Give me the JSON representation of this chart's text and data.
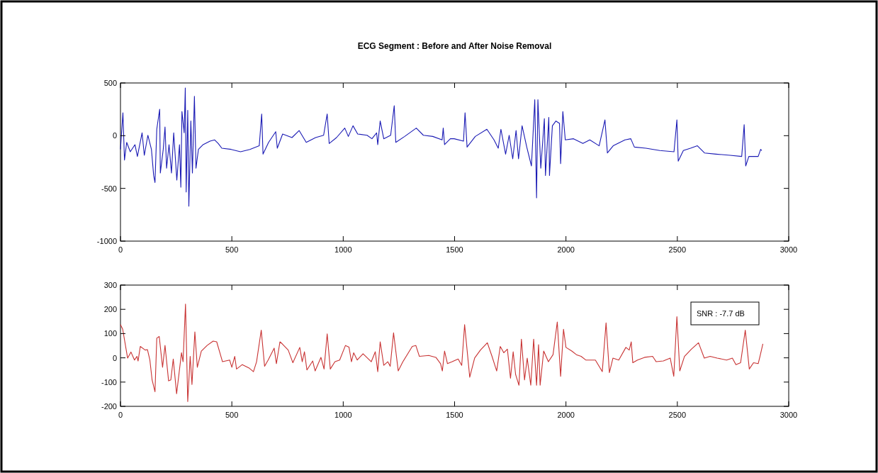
{
  "chart_data": [
    {
      "type": "line",
      "title": "ECG Segment : Before and After Noise Removal",
      "xlim": [
        0,
        3000
      ],
      "xticks": [
        0,
        500,
        1000,
        1500,
        2000,
        2500,
        3000
      ],
      "ylim": [
        -1000,
        500
      ],
      "yticks": [
        -1000,
        -500,
        0,
        500
      ],
      "grid": false,
      "marker": "none",
      "line_style": "solid",
      "series": [
        {
          "color": "#1a1ab4",
          "x": [
            0,
            11,
            18,
            28,
            44,
            65,
            76,
            97,
            107,
            123,
            139,
            149,
            155,
            163,
            176,
            179,
            192,
            200,
            207,
            218,
            229,
            239,
            253,
            265,
            271,
            276,
            286,
            291,
            295,
            302,
            307,
            316,
            323,
            332,
            339,
            350,
            371,
            402,
            423,
            439,
            455,
            497,
            539,
            581,
            623,
            634,
            640,
            665,
            697,
            704,
            728,
            770,
            802,
            834,
            876,
            912,
            928,
            937,
            970,
            1007,
            1023,
            1044,
            1065,
            1107,
            1129,
            1150,
            1155,
            1166,
            1182,
            1213,
            1229,
            1236,
            1276,
            1328,
            1360,
            1402,
            1444,
            1449,
            1455,
            1481,
            1498,
            1540,
            1547,
            1556,
            1593,
            1645,
            1677,
            1696,
            1708,
            1729,
            1745,
            1761,
            1776,
            1787,
            1803,
            1824,
            1845,
            1860,
            1868,
            1874,
            1887,
            1903,
            1908,
            1923,
            1926,
            1939,
            1955,
            1971,
            1976,
            1986,
            1997,
            2034,
            2076,
            2107,
            2149,
            2175,
            2186,
            2212,
            2265,
            2291,
            2307,
            2359,
            2421,
            2485,
            2498,
            2504,
            2527,
            2559,
            2590,
            2622,
            2674,
            2737,
            2789,
            2800,
            2807,
            2821,
            2863,
            2874,
            2879
          ],
          "values": [
            -130,
            217,
            -231,
            -63,
            -152,
            -85,
            -197,
            27,
            -186,
            4,
            -130,
            -377,
            -444,
            61,
            251,
            -354,
            -130,
            83,
            -309,
            -85,
            -354,
            27,
            -421,
            -85,
            -489,
            229,
            27,
            453,
            -534,
            240,
            -668,
            139,
            -354,
            374,
            -309,
            -130,
            -85,
            -52,
            -40,
            -74,
            -119,
            -130,
            -152,
            -130,
            -96,
            206,
            -175,
            -63,
            38,
            -119,
            16,
            -18,
            49,
            -63,
            -18,
            4,
            206,
            -74,
            -18,
            72,
            -7,
            94,
            16,
            4,
            -29,
            27,
            -85,
            139,
            -29,
            4,
            285,
            -63,
            -7,
            72,
            4,
            -7,
            -40,
            72,
            -85,
            -29,
            -29,
            -52,
            217,
            -108,
            -7,
            61,
            -40,
            -119,
            61,
            -175,
            4,
            -220,
            49,
            -220,
            94,
            -108,
            -287,
            341,
            -590,
            341,
            -309,
            161,
            -377,
            173,
            -377,
            94,
            139,
            117,
            -265,
            229,
            -40,
            -29,
            -74,
            -40,
            -96,
            150,
            -164,
            -96,
            -40,
            -29,
            -108,
            -119,
            -141,
            -152,
            150,
            -242,
            -141,
            -119,
            -96,
            -164,
            -175,
            -186,
            -197,
            105,
            -287,
            -197,
            -197,
            -130,
            -141
          ]
        }
      ]
    },
    {
      "type": "line",
      "xlim": [
        0,
        3000
      ],
      "xticks": [
        0,
        500,
        1000,
        1500,
        2000,
        2500,
        3000
      ],
      "ylim": [
        -200,
        300
      ],
      "yticks": [
        -200,
        -100,
        0,
        100,
        200,
        300
      ],
      "grid": false,
      "marker": "none",
      "line_style": "solid",
      "annotations": [
        "SNR : -7.7 dB"
      ],
      "series": [
        {
          "color": "#c83232",
          "x": [
            0,
            10,
            32,
            47,
            63,
            74,
            79,
            89,
            111,
            121,
            132,
            142,
            155,
            163,
            174,
            189,
            200,
            216,
            226,
            237,
            252,
            274,
            281,
            292,
            302,
            313,
            321,
            334,
            345,
            363,
            389,
            416,
            432,
            458,
            490,
            500,
            513,
            521,
            547,
            579,
            597,
            611,
            632,
            647,
            663,
            690,
            700,
            716,
            726,
            753,
            774,
            805,
            816,
            826,
            837,
            863,
            874,
            900,
            914,
            928,
            942,
            963,
            984,
            1010,
            1026,
            1037,
            1047,
            1063,
            1089,
            1126,
            1144,
            1155,
            1166,
            1182,
            1200,
            1211,
            1226,
            1247,
            1268,
            1310,
            1326,
            1342,
            1384,
            1416,
            1437,
            1445,
            1455,
            1468,
            1489,
            1516,
            1532,
            1545,
            1568,
            1590,
            1616,
            1647,
            1668,
            1689,
            1705,
            1721,
            1737,
            1751,
            1763,
            1774,
            1789,
            1800,
            1814,
            1826,
            1842,
            1855,
            1868,
            1877,
            1884,
            1900,
            1921,
            1942,
            1961,
            1976,
            1989,
            2000,
            2026,
            2047,
            2068,
            2089,
            2132,
            2163,
            2180,
            2195,
            2211,
            2237,
            2269,
            2284,
            2293,
            2300,
            2321,
            2353,
            2389,
            2405,
            2437,
            2468,
            2484,
            2498,
            2511,
            2532,
            2563,
            2595,
            2621,
            2647,
            2679,
            2721,
            2747,
            2763,
            2784,
            2805,
            2823,
            2842,
            2863,
            2871,
            2884
          ],
          "values": [
            137,
            118,
            -1,
            24,
            -9,
            6,
            -13,
            47,
            32,
            34,
            -9,
            -91,
            -140,
            81,
            88,
            -39,
            51,
            -95,
            -91,
            -5,
            -148,
            21,
            -16,
            222,
            -180,
            6,
            -110,
            107,
            -39,
            28,
            51,
            69,
            66,
            -16,
            -9,
            -39,
            6,
            -46,
            -28,
            -43,
            -57,
            -16,
            114,
            -35,
            -9,
            40,
            -24,
            66,
            58,
            32,
            -20,
            43,
            -16,
            25,
            -50,
            -13,
            -54,
            2,
            -46,
            99,
            -46,
            -16,
            -9,
            51,
            44,
            -16,
            21,
            -9,
            17,
            -16,
            25,
            -57,
            66,
            -31,
            -16,
            -35,
            103,
            -54,
            -16,
            47,
            51,
            6,
            10,
            2,
            -24,
            -54,
            28,
            -24,
            -16,
            -5,
            -31,
            137,
            -80,
            -1,
            32,
            62,
            6,
            -54,
            47,
            21,
            36,
            -84,
            25,
            -69,
            -113,
            77,
            -91,
            -1,
            -113,
            77,
            -113,
            54,
            -113,
            28,
            -16,
            13,
            148,
            -76,
            118,
            43,
            28,
            13,
            6,
            -9,
            -9,
            -57,
            144,
            -61,
            -1,
            -9,
            43,
            32,
            66,
            -20,
            -9,
            2,
            6,
            -16,
            -13,
            -1,
            -76,
            170,
            -54,
            6,
            36,
            62,
            -1,
            6,
            -1,
            -9,
            -1,
            -28,
            -20,
            114,
            -46,
            -20,
            -24,
            6,
            58
          ]
        }
      ]
    }
  ]
}
